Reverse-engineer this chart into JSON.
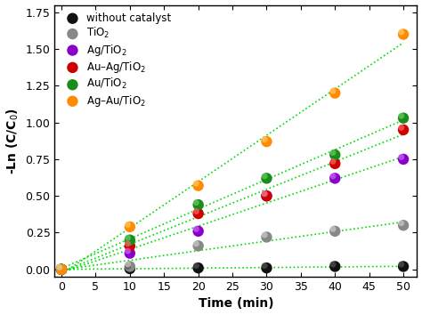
{
  "title": "",
  "xlabel": "Time (min)",
  "ylabel": "-Ln (C/C$_0$)",
  "xlim": [
    -1,
    52
  ],
  "ylim": [
    -0.05,
    1.8
  ],
  "xticks": [
    0,
    5,
    10,
    15,
    20,
    25,
    30,
    35,
    40,
    45,
    50
  ],
  "yticks": [
    0.0,
    0.25,
    0.5,
    0.75,
    1.0,
    1.25,
    1.5,
    1.75
  ],
  "series": [
    {
      "label": "without catalyst",
      "color": "#111111",
      "highlight": "#555555",
      "x": [
        0,
        10,
        20,
        30,
        40,
        50
      ],
      "y": [
        0.0,
        0.005,
        0.01,
        0.01,
        0.02,
        0.02
      ]
    },
    {
      "label": "TiO$_2$",
      "color": "#888888",
      "highlight": "#cccccc",
      "x": [
        0,
        10,
        20,
        30,
        40,
        50
      ],
      "y": [
        0.0,
        0.02,
        0.16,
        0.22,
        0.26,
        0.3
      ]
    },
    {
      "label": "Ag/TiO$_2$",
      "color": "#8B00C8",
      "highlight": "#cc66ff",
      "x": [
        0,
        10,
        20,
        30,
        40,
        50
      ],
      "y": [
        0.0,
        0.11,
        0.26,
        0.5,
        0.62,
        0.75
      ]
    },
    {
      "label": "Au–Ag/TiO$_2$",
      "color": "#cc0000",
      "highlight": "#ff6666",
      "x": [
        0,
        10,
        20,
        30,
        40,
        50
      ],
      "y": [
        0.0,
        0.16,
        0.38,
        0.5,
        0.72,
        0.95
      ]
    },
    {
      "label": "Au/TiO$_2$",
      "color": "#1a8c1a",
      "highlight": "#66cc66",
      "x": [
        0,
        10,
        20,
        30,
        40,
        50
      ],
      "y": [
        0.0,
        0.2,
        0.44,
        0.62,
        0.78,
        1.03
      ]
    },
    {
      "label": "Ag–Au/TiO$_2$",
      "color": "#FF8C00",
      "highlight": "#ffcc66",
      "x": [
        0,
        10,
        20,
        30,
        40,
        50
      ],
      "y": [
        0.0,
        0.29,
        0.57,
        0.87,
        1.2,
        1.6
      ]
    }
  ],
  "fit_color": "#00dd00",
  "marker_size": 80,
  "highlight_size": 25,
  "line_width": 1.2,
  "legend_fontsize": 8.5,
  "axis_fontsize": 10,
  "tick_fontsize": 9
}
